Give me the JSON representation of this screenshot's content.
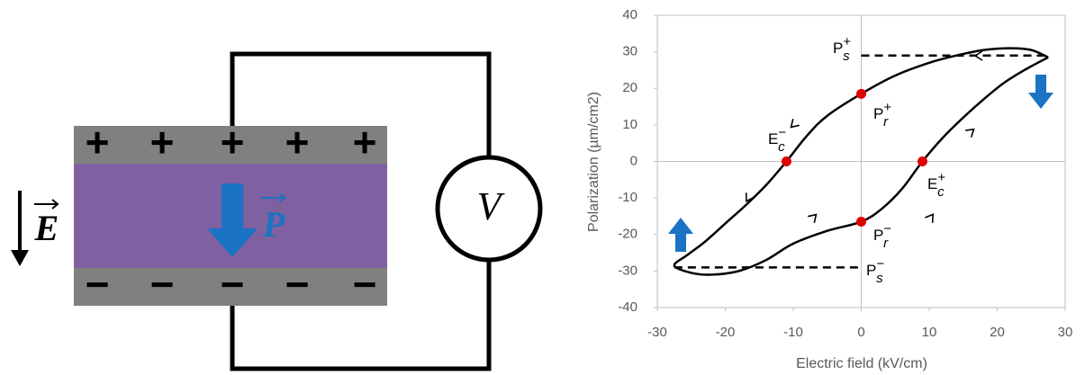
{
  "diagram": {
    "plus_signs": [
      "+",
      "+",
      "+",
      "+",
      "+"
    ],
    "minus_signs": [
      "−",
      "−",
      "−",
      "−",
      "−"
    ],
    "voltmeter": "V",
    "field": "E",
    "polarization": "P"
  },
  "chart_data": {
    "type": "line",
    "x_label": "Electric field (kV/cm)",
    "y_label": "Polarization (µm/cm2)",
    "xlim": [
      -30,
      30
    ],
    "xticks": [
      -30,
      -20,
      -10,
      0,
      10,
      20,
      30
    ],
    "ylim": [
      -40,
      40
    ],
    "yticks": [
      -40,
      -30,
      -20,
      -10,
      0,
      10,
      20,
      30,
      40
    ],
    "grid": false,
    "series": [
      {
        "color": "#000000",
        "x": [
          27.5,
          25,
          22,
          18,
          14,
          10,
          5,
          0,
          -5,
          -8,
          -11,
          -14,
          -17,
          -20,
          -23,
          -25.5,
          -27.5,
          -25,
          -22,
          -18,
          -14,
          -10,
          -5,
          0,
          3,
          6,
          9,
          12,
          15,
          18,
          21,
          24,
          27.5
        ],
        "values": [
          28.5,
          30.5,
          31,
          30.5,
          29,
          27,
          23.5,
          18.5,
          12.5,
          7,
          0,
          -6.5,
          -12,
          -17,
          -22,
          -25.5,
          -28.5,
          -30.5,
          -31,
          -30,
          -27,
          -22.5,
          -19,
          -16.5,
          -13,
          -7.5,
          0,
          6.5,
          12,
          17,
          21.5,
          25,
          28.5
        ]
      }
    ],
    "points": {
      "color": "#e00000",
      "x": [
        0,
        -11,
        9,
        0
      ],
      "values": [
        18.5,
        0,
        0,
        -16.5
      ]
    },
    "reference_lines": [
      {
        "x": [
          0,
          27.5
        ],
        "values": [
          29,
          29
        ]
      },
      {
        "x": [
          -27.5,
          0
        ],
        "values": [
          -29,
          -29
        ]
      }
    ],
    "annotations": [
      {
        "base": "P",
        "sub": "s",
        "sup": "+"
      },
      {
        "base": "P",
        "sub": "r",
        "sup": "+"
      },
      {
        "base": "E",
        "sub": "c",
        "sup": "−"
      },
      {
        "base": "E",
        "sub": "c",
        "sup": "+"
      },
      {
        "base": "P",
        "sub": "r",
        "sup": "−"
      },
      {
        "base": "P",
        "sub": "s",
        "sup": "−"
      }
    ]
  }
}
